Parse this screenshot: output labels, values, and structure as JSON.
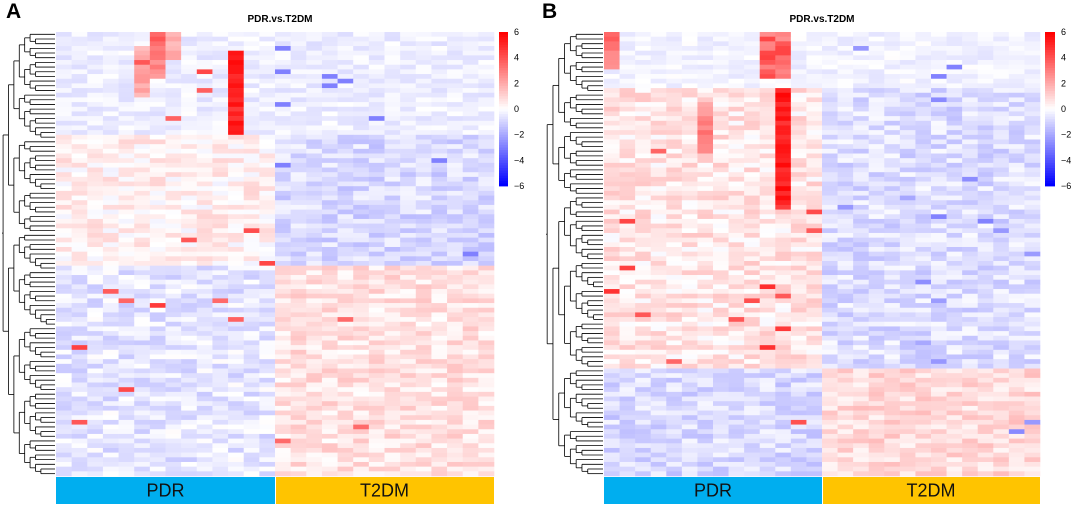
{
  "colors": {
    "low": "#0000ff",
    "mid": "#ffffff",
    "high": "#ff0000",
    "pdr": "#00aeef",
    "t2dm": "#ffc400"
  },
  "chart_data": [
    {
      "panel": "A",
      "type": "heatmap",
      "title": "PDR.vs.T2DM",
      "color_scale": {
        "min": -6,
        "max": 6,
        "ticks": [
          6,
          4,
          2,
          0,
          -2,
          -4,
          -6
        ]
      },
      "groups": [
        {
          "name": "PDR",
          "samples": 14
        },
        {
          "name": "T2DM",
          "samples": 14
        }
      ],
      "rows": 95,
      "row_dendrogram": true,
      "structure": "upper block strongly up-regulated in a few PDR samples; lower block mildly up in T2DM"
    },
    {
      "panel": "B",
      "type": "heatmap",
      "title": "PDR.vs.T2DM",
      "color_scale": {
        "min": -6,
        "max": 6,
        "ticks": [
          6,
          4,
          2,
          0,
          -2,
          -4,
          -6
        ]
      },
      "groups": [
        {
          "name": "PDR",
          "samples": 14
        },
        {
          "name": "T2DM",
          "samples": 14
        }
      ],
      "rows": 95,
      "row_dendrogram": true,
      "structure": "most rows up in PDR; bottom rows up in T2DM"
    }
  ]
}
